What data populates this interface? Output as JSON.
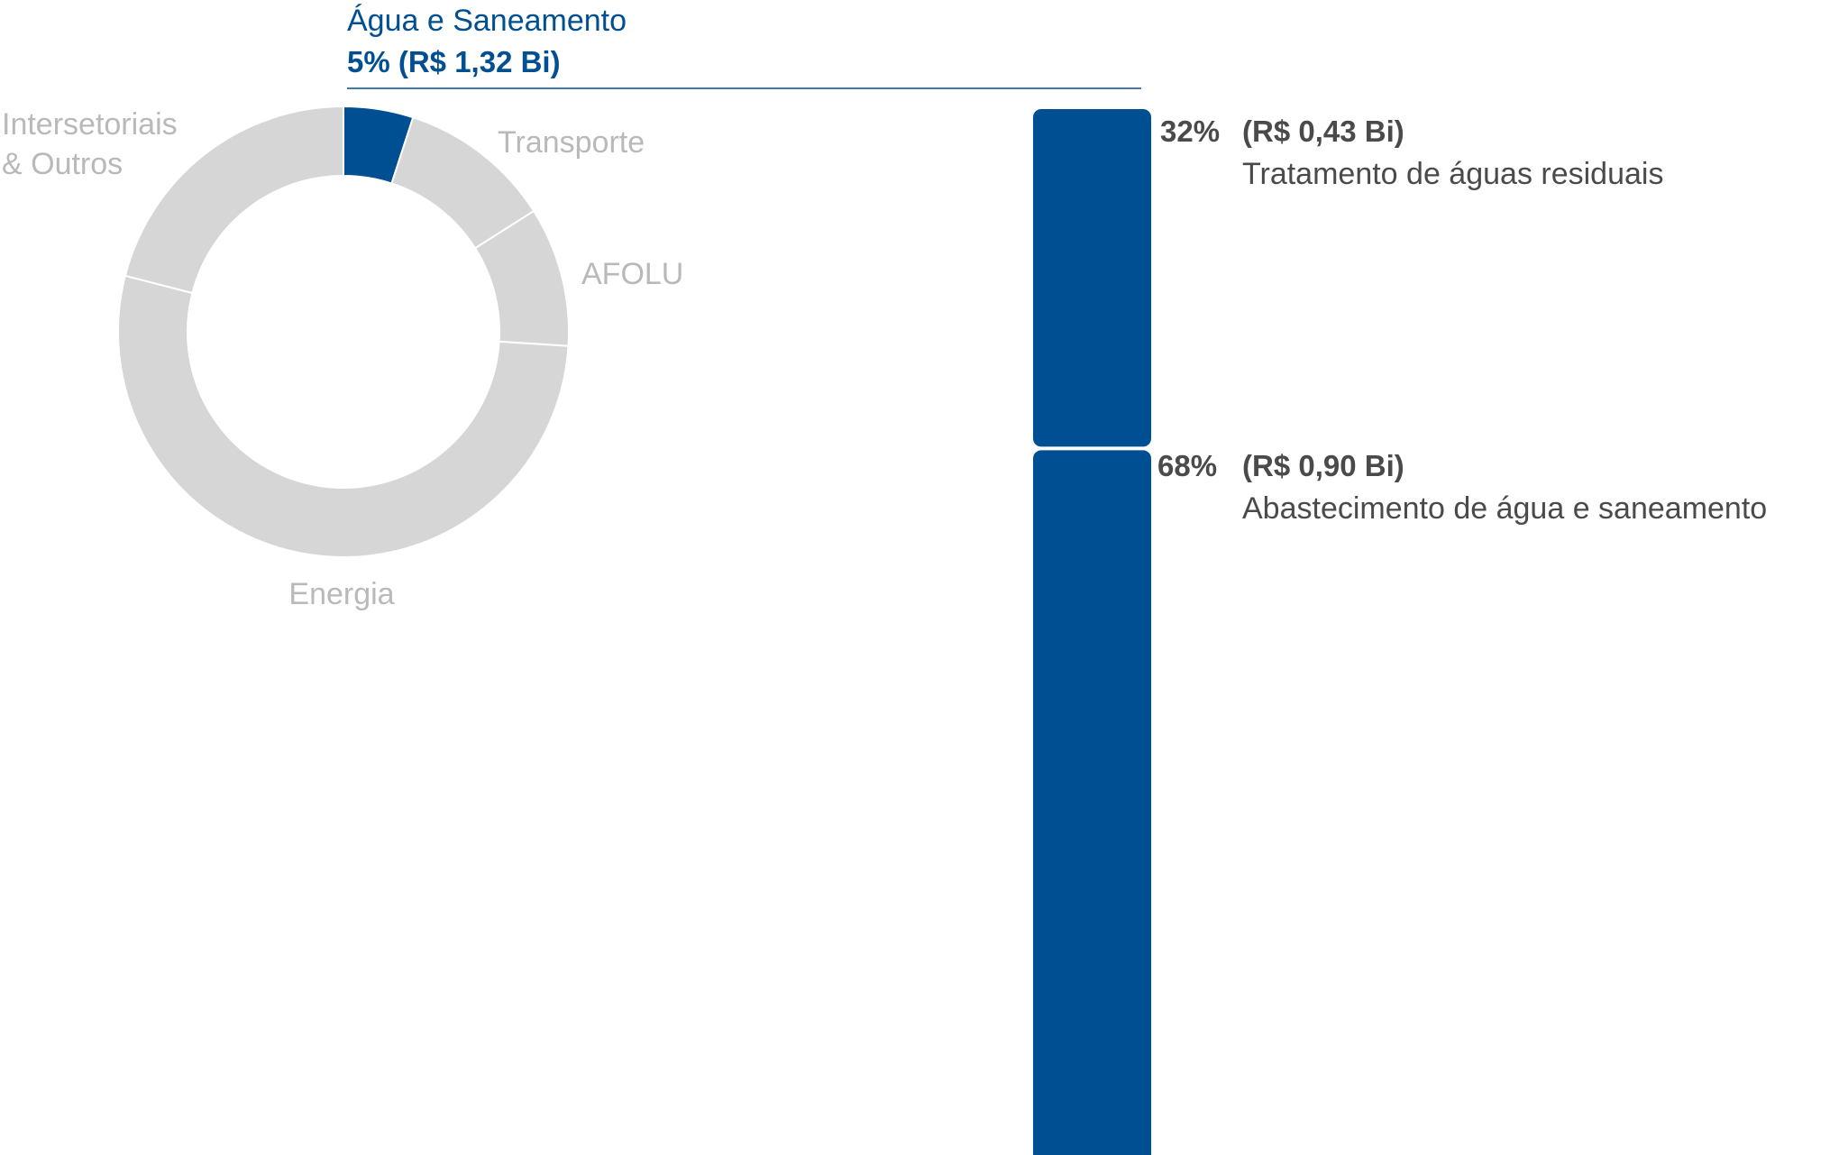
{
  "chart_data": [
    {
      "type": "pie",
      "variant": "donut",
      "slices": [
        {
          "label": "Água e Saneamento",
          "value": 5,
          "highlighted": true
        },
        {
          "label": "Transporte",
          "value": 11
        },
        {
          "label": "AFOLU",
          "value": 10
        },
        {
          "label": "Energia",
          "value": 53
        },
        {
          "label": "Intersetoriais & Outros",
          "value": 21
        }
      ],
      "highlight": {
        "label": "Água e Saneamento",
        "value_label": "5% (R$ 1,32 Bi)"
      }
    },
    {
      "type": "bar",
      "variant": "stacked",
      "categories": [
        "Tratamento de águas residuais",
        "Abastecimento de água e saneamento"
      ],
      "values": [
        32,
        68
      ],
      "percent_labels": [
        "32%",
        "68%"
      ],
      "amount_labels": [
        "(R$ 0,43 Bi)",
        "(R$ 0,90 Bi)"
      ]
    }
  ],
  "labels": {
    "transport": "Transporte",
    "afolu": "AFOLU",
    "energy": "Energia",
    "cross_line1": "Intersetoriais",
    "cross_line2": "& Outros"
  },
  "colors": {
    "highlight": "#004f92",
    "grey": "#d6d6d6",
    "grey_text": "#b9b9b9",
    "dark_text": "#4a4a4a",
    "separator": "#ffffff"
  }
}
